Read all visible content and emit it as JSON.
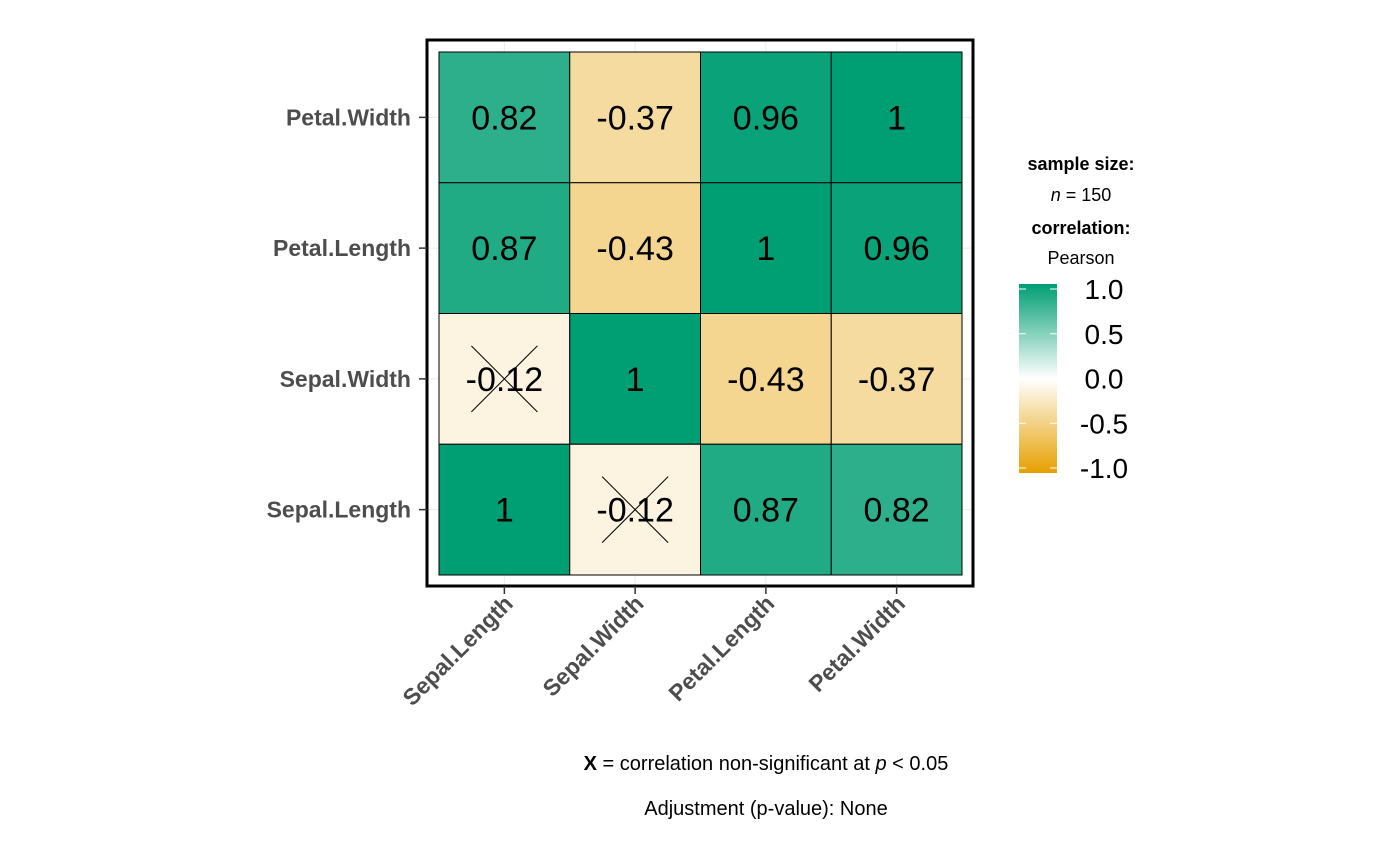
{
  "chart_data": {
    "type": "heatmap",
    "rows": [
      "Petal.Width",
      "Petal.Length",
      "Sepal.Width",
      "Sepal.Length"
    ],
    "columns": [
      "Sepal.Length",
      "Sepal.Width",
      "Petal.Length",
      "Petal.Width"
    ],
    "values": [
      [
        0.82,
        -0.37,
        0.96,
        1
      ],
      [
        0.87,
        -0.43,
        1,
        0.96
      ],
      [
        -0.12,
        1,
        -0.43,
        -0.37
      ],
      [
        1,
        -0.12,
        0.87,
        0.82
      ]
    ],
    "labels": [
      [
        "0.82",
        "-0.37",
        "0.96",
        "1"
      ],
      [
        "0.87",
        "-0.43",
        "1",
        "0.96"
      ],
      [
        "-0.12",
        "1",
        "-0.43",
        "-0.37"
      ],
      [
        "1",
        "-0.12",
        "0.87",
        "0.82"
      ]
    ],
    "non_significant": [
      [
        false,
        false,
        false,
        false
      ],
      [
        false,
        false,
        false,
        false
      ],
      [
        true,
        false,
        false,
        false
      ],
      [
        false,
        true,
        false,
        false
      ]
    ],
    "colors": {
      "high": "#009E73",
      "mid": "#FFFFFF",
      "low": "#E69F00"
    },
    "legend": {
      "sample_size_title": "sample size:",
      "sample_size_var": "n",
      "sample_size_value": " = 150",
      "correlation_title": "correlation:",
      "correlation_method": "Pearson",
      "ticks": [
        "1.0",
        "0.5",
        "0.0",
        "-0.5",
        "-1.0"
      ],
      "tick_values": [
        1.0,
        0.5,
        0.0,
        -0.5,
        -1.0
      ],
      "range": [
        -1.0,
        1.0
      ]
    },
    "caption": {
      "marker": "X",
      "text_before_p": " = correlation non-significant at ",
      "p_symbol": "p",
      "text_after_p": " < 0.05",
      "adjustment": "Adjustment (p-value): None"
    }
  }
}
